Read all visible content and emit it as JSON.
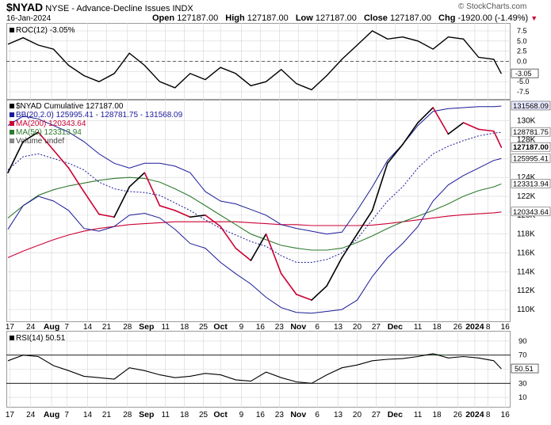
{
  "header": {
    "symbol": "$NYAD",
    "name": "NYSE - Advance-Decline Issues",
    "exchange": "INDX",
    "date": "16-Jan-2024",
    "open_label": "Open",
    "open": "127187.00",
    "high_label": "High",
    "high": "127187.00",
    "low_label": "Low",
    "low": "127187.00",
    "close_label": "Close",
    "close": "127187.00",
    "chg_label": "Chg",
    "chg": "-1920.00 (-1.49%)",
    "watermark": "© StockCharts.com"
  },
  "roc": {
    "legend": "ROC(12) -3.05%",
    "ticks": [
      "7.5",
      "5.0",
      "2.5",
      "0.0",
      "-2.5",
      "-5.0",
      "-7.5"
    ],
    "last_badge": "-3.05"
  },
  "main": {
    "legend": {
      "line": "$NYAD Cumulative 127187.00",
      "bb": "BB(20,2.0) 125995.41 - 128781.75 - 131568.09",
      "ma200": "MA(200) 120343.64",
      "ma50": "MA(50) 123313.94",
      "volume": "Volume undef"
    },
    "ticks": [
      "130K",
      "128K",
      "126K",
      "124K",
      "122K",
      "120K",
      "118K",
      "116K",
      "114K",
      "112K",
      "110K"
    ],
    "badges": {
      "bb_upper": "131568.09",
      "bb_mid": "128781.75",
      "close": "127187.00",
      "bb_lower": "125995.41",
      "ma50": "123313.94",
      "ma200": "120343.64"
    }
  },
  "rsi": {
    "legend": "RSI(14) 50.51",
    "ticks": [
      "90",
      "70",
      "50",
      "30",
      "10"
    ],
    "last_badge": "50.51"
  },
  "x_axis": [
    "17",
    "24",
    "Aug",
    "7",
    "14",
    "21",
    "28",
    "Sep",
    "11",
    "18",
    "25",
    "Oct",
    "9",
    "16",
    "23",
    "Nov",
    "6",
    "13",
    "20",
    "27",
    "Dec",
    "11",
    "18",
    "26",
    "2024",
    "8",
    "16"
  ],
  "colors": {
    "price_up": "#000000",
    "price_down": "#cc0033",
    "bb": "#1a1a99",
    "bb_mid": "#1a1a99",
    "ma200": "#cc0033",
    "ma50": "#2f7a2f",
    "rsi_fill": "#4a7a4a",
    "grid": "#d6d6d6"
  },
  "chart_data": [
    {
      "type": "line",
      "title": "ROC(12) -3.05%",
      "ylim": [
        -7.5,
        7.5
      ],
      "x": [
        0,
        4,
        8,
        12,
        16,
        20,
        24,
        28,
        32,
        36,
        40,
        44,
        48,
        52,
        56,
        60,
        64,
        68,
        72,
        76,
        80,
        84,
        88,
        92,
        96,
        100,
        104,
        108,
        112,
        116,
        120,
        124,
        128,
        130
      ],
      "series": [
        {
          "name": "ROC(12)",
          "values": [
            4.2,
            5.8,
            4.0,
            3.0,
            -1.0,
            -3.5,
            -5.0,
            -3.0,
            2.0,
            -1.0,
            -5.0,
            -6.5,
            -3.0,
            -4.5,
            -1.5,
            -3.0,
            -6.0,
            -5.0,
            -2.0,
            -5.5,
            -7.0,
            -3.5,
            0.5,
            4.0,
            7.5,
            5.5,
            6.0,
            5.0,
            3.0,
            6.0,
            5.5,
            1.0,
            0.5,
            -3.05
          ]
        }
      ]
    },
    {
      "type": "line",
      "title": "$NYAD Cumulative 127187.00",
      "ylim": [
        109000,
        131900
      ],
      "x": [
        0,
        4,
        8,
        12,
        16,
        20,
        24,
        28,
        32,
        36,
        40,
        44,
        48,
        52,
        56,
        60,
        64,
        68,
        72,
        76,
        80,
        84,
        88,
        92,
        96,
        100,
        104,
        108,
        112,
        116,
        120,
        124,
        128,
        130
      ],
      "series": [
        {
          "name": "$NYAD",
          "values": [
            124500,
            127800,
            128800,
            126900,
            125000,
            122500,
            120100,
            119800,
            123000,
            124500,
            121000,
            120500,
            119800,
            120000,
            118800,
            116500,
            115200,
            118000,
            113800,
            111600,
            111000,
            112500,
            115500,
            118000,
            120500,
            125500,
            127500,
            129800,
            131400,
            128600,
            129800,
            129100,
            128900,
            127187
          ]
        },
        {
          "name": "BB upper",
          "values": [
            129500,
            130500,
            130200,
            129500,
            128800,
            127800,
            126500,
            125500,
            125000,
            125500,
            125500,
            125200,
            124500,
            122500,
            121500,
            121200,
            120600,
            120000,
            119000,
            118600,
            118300,
            118000,
            118200,
            120500,
            123000,
            125800,
            127500,
            129500,
            131000,
            131300,
            131400,
            131500,
            131500,
            131568
          ]
        },
        {
          "name": "BB middle",
          "values": [
            124800,
            126200,
            126500,
            126000,
            125500,
            124800,
            123500,
            122800,
            122500,
            122400,
            122100,
            121300,
            120500,
            119500,
            118600,
            117900,
            117200,
            116700,
            115700,
            115000,
            115000,
            115300,
            116000,
            117500,
            119500,
            121500,
            123000,
            125000,
            126500,
            127300,
            127900,
            128400,
            128700,
            128781
          ]
        },
        {
          "name": "BB lower",
          "values": [
            118500,
            121000,
            122000,
            121500,
            120500,
            118600,
            118300,
            118800,
            120000,
            120200,
            119700,
            118500,
            117000,
            116500,
            115000,
            113800,
            112700,
            111300,
            110200,
            109700,
            109600,
            109800,
            110000,
            111000,
            113500,
            115500,
            117000,
            118800,
            121500,
            123200,
            124200,
            125000,
            125800,
            125995
          ]
        },
        {
          "name": "MA(200)",
          "values": [
            115500,
            116200,
            116800,
            117400,
            117900,
            118300,
            118600,
            118800,
            119000,
            119100,
            119200,
            119300,
            119300,
            119300,
            119300,
            119300,
            119200,
            119100,
            119000,
            119000,
            118900,
            118900,
            118900,
            118900,
            118950,
            119100,
            119300,
            119500,
            119700,
            119900,
            120050,
            120150,
            120250,
            120343
          ]
        },
        {
          "name": "MA(50)",
          "values": [
            119700,
            121000,
            122100,
            122700,
            123100,
            123400,
            123700,
            123900,
            124000,
            123900,
            123500,
            122800,
            122000,
            121000,
            120000,
            119000,
            118000,
            117400,
            116800,
            116500,
            116300,
            116300,
            116500,
            117100,
            117800,
            118600,
            119300,
            119900,
            120500,
            121200,
            122000,
            122600,
            123000,
            123313
          ]
        }
      ]
    },
    {
      "type": "line",
      "title": "RSI(14) 50.51",
      "ylim": [
        0,
        100
      ],
      "x": [
        0,
        4,
        8,
        12,
        16,
        20,
        24,
        28,
        32,
        36,
        40,
        44,
        48,
        52,
        56,
        60,
        64,
        68,
        72,
        76,
        80,
        84,
        88,
        92,
        96,
        100,
        104,
        108,
        112,
        116,
        120,
        124,
        128,
        130
      ],
      "series": [
        {
          "name": "RSI(14)",
          "values": [
            62,
            70,
            68,
            55,
            48,
            40,
            38,
            36,
            52,
            48,
            42,
            38,
            40,
            44,
            42,
            35,
            33,
            46,
            38,
            32,
            30,
            42,
            52,
            56,
            62,
            64,
            65,
            68,
            72,
            66,
            68,
            66,
            62,
            50.51
          ]
        }
      ]
    }
  ]
}
